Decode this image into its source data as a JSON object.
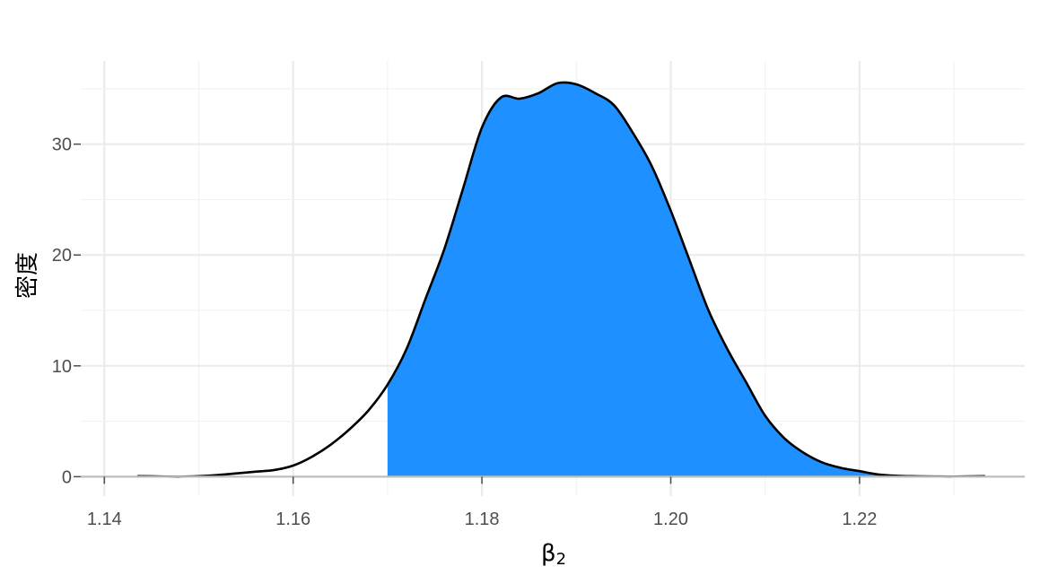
{
  "chart_data": {
    "type": "area",
    "title": "",
    "xlabel": "β",
    "xlabel_sub": "2",
    "ylabel": "密度",
    "xlim": [
      1.1375,
      1.2375
    ],
    "ylim": [
      -1.75,
      37.5
    ],
    "x_ticks": [
      1.14,
      1.16,
      1.18,
      1.2,
      1.22
    ],
    "x_tick_labels": [
      "1.14",
      "1.16",
      "1.18",
      "1.20",
      "1.22"
    ],
    "y_ticks": [
      0,
      10,
      20,
      30
    ],
    "y_tick_labels": [
      "0",
      "10",
      "20",
      "30"
    ],
    "grid": true,
    "shade_from": 1.17,
    "fill_color": "#1E90FF",
    "line_color": "#000000",
    "density": {
      "x": [
        1.1435,
        1.146,
        1.148,
        1.15,
        1.152,
        1.154,
        1.156,
        1.158,
        1.16,
        1.162,
        1.164,
        1.166,
        1.168,
        1.17,
        1.172,
        1.174,
        1.176,
        1.178,
        1.18,
        1.182,
        1.184,
        1.186,
        1.188,
        1.19,
        1.192,
        1.194,
        1.196,
        1.198,
        1.2,
        1.202,
        1.204,
        1.206,
        1.208,
        1.21,
        1.212,
        1.214,
        1.216,
        1.218,
        1.22,
        1.222,
        1.224,
        1.226,
        1.228,
        1.23,
        1.2333
      ],
      "y": [
        0.05,
        0.02,
        0.0,
        0.05,
        0.15,
        0.3,
        0.45,
        0.6,
        1.0,
        1.8,
        2.9,
        4.3,
        6.0,
        8.3,
        11.5,
        16.0,
        20.5,
        26.0,
        31.5,
        34.2,
        34.1,
        34.6,
        35.5,
        35.4,
        34.6,
        33.5,
        31.0,
        28.0,
        24.0,
        19.5,
        15.0,
        11.5,
        8.5,
        5.5,
        3.5,
        2.2,
        1.3,
        0.8,
        0.5,
        0.2,
        0.08,
        0.04,
        0.02,
        0.01,
        0.05
      ]
    }
  }
}
